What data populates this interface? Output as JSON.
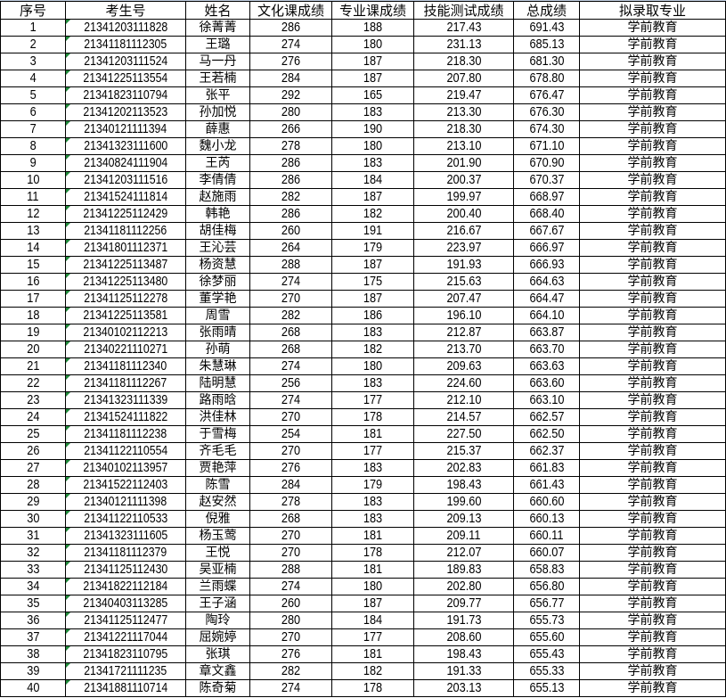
{
  "headers": [
    "序号",
    "考生号",
    "姓名",
    "文化课成绩",
    "专业课成绩",
    "技能测试成绩",
    "总成绩",
    "拟录取专业"
  ],
  "rows": [
    [
      "1",
      "21341203111828",
      "徐菁菁",
      "286",
      "188",
      "217.43",
      "691.43",
      "学前教育"
    ],
    [
      "2",
      "21341181112305",
      "王璐",
      "274",
      "180",
      "231.13",
      "685.13",
      "学前教育"
    ],
    [
      "3",
      "21341203111524",
      "马一丹",
      "276",
      "187",
      "218.30",
      "681.30",
      "学前教育"
    ],
    [
      "4",
      "21341225113554",
      "王若楠",
      "284",
      "187",
      "207.80",
      "678.80",
      "学前教育"
    ],
    [
      "5",
      "21341823110794",
      "张平",
      "292",
      "165",
      "219.47",
      "676.47",
      "学前教育"
    ],
    [
      "6",
      "21341202113523",
      "孙加悦",
      "280",
      "183",
      "213.30",
      "676.30",
      "学前教育"
    ],
    [
      "7",
      "21340121111394",
      "薛惠",
      "266",
      "190",
      "218.30",
      "674.30",
      "学前教育"
    ],
    [
      "8",
      "21341323111600",
      "魏小龙",
      "278",
      "180",
      "213.10",
      "671.10",
      "学前教育"
    ],
    [
      "9",
      "21340824111904",
      "王芮",
      "286",
      "183",
      "201.90",
      "670.90",
      "学前教育"
    ],
    [
      "10",
      "21341203111516",
      "李倩倩",
      "286",
      "184",
      "200.37",
      "670.37",
      "学前教育"
    ],
    [
      "11",
      "21341524111814",
      "赵施雨",
      "282",
      "187",
      "199.97",
      "668.97",
      "学前教育"
    ],
    [
      "12",
      "21341225112429",
      "韩艳",
      "286",
      "182",
      "200.40",
      "668.40",
      "学前教育"
    ],
    [
      "13",
      "21341181112256",
      "胡佳梅",
      "260",
      "191",
      "216.67",
      "667.67",
      "学前教育"
    ],
    [
      "14",
      "21341801112371",
      "王沁芸",
      "264",
      "179",
      "223.97",
      "666.97",
      "学前教育"
    ],
    [
      "15",
      "21341225113487",
      "杨资慧",
      "288",
      "187",
      "191.93",
      "666.93",
      "学前教育"
    ],
    [
      "16",
      "21341225113480",
      "徐梦丽",
      "274",
      "175",
      "215.63",
      "664.63",
      "学前教育"
    ],
    [
      "17",
      "21341125112278",
      "董学艳",
      "270",
      "187",
      "207.47",
      "664.47",
      "学前教育"
    ],
    [
      "18",
      "21341225113581",
      "周雪",
      "282",
      "186",
      "196.10",
      "664.10",
      "学前教育"
    ],
    [
      "19",
      "21340102112213",
      "张雨晴",
      "268",
      "183",
      "212.87",
      "663.87",
      "学前教育"
    ],
    [
      "20",
      "21340221110271",
      "孙萌",
      "268",
      "182",
      "213.70",
      "663.70",
      "学前教育"
    ],
    [
      "21",
      "21341181112340",
      "朱慧琳",
      "274",
      "180",
      "209.63",
      "663.63",
      "学前教育"
    ],
    [
      "22",
      "21341181112267",
      "陆明慧",
      "256",
      "183",
      "224.60",
      "663.60",
      "学前教育"
    ],
    [
      "23",
      "21341323111339",
      "路雨晗",
      "274",
      "177",
      "212.10",
      "663.10",
      "学前教育"
    ],
    [
      "24",
      "21341524111822",
      "洪佳林",
      "270",
      "178",
      "214.57",
      "662.57",
      "学前教育"
    ],
    [
      "25",
      "21341181112238",
      "于雪梅",
      "254",
      "181",
      "227.50",
      "662.50",
      "学前教育"
    ],
    [
      "26",
      "21341122110554",
      "齐毛毛",
      "270",
      "177",
      "215.37",
      "662.37",
      "学前教育"
    ],
    [
      "27",
      "21340102113957",
      "贾艳萍",
      "276",
      "183",
      "202.83",
      "661.83",
      "学前教育"
    ],
    [
      "28",
      "21341522112403",
      "陈雪",
      "284",
      "179",
      "198.43",
      "661.43",
      "学前教育"
    ],
    [
      "29",
      "21340121111398",
      "赵安然",
      "278",
      "183",
      "199.60",
      "660.60",
      "学前教育"
    ],
    [
      "30",
      "21341122110533",
      "倪雅",
      "268",
      "183",
      "209.13",
      "660.13",
      "学前教育"
    ],
    [
      "31",
      "21341323111605",
      "杨玉莺",
      "270",
      "181",
      "209.11",
      "660.11",
      "学前教育"
    ],
    [
      "32",
      "21341181112379",
      "王悦",
      "270",
      "178",
      "212.07",
      "660.07",
      "学前教育"
    ],
    [
      "33",
      "21341125112430",
      "吴亚楠",
      "288",
      "181",
      "189.83",
      "658.83",
      "学前教育"
    ],
    [
      "34",
      "21341822112184",
      "兰雨蝶",
      "274",
      "180",
      "202.80",
      "656.80",
      "学前教育"
    ],
    [
      "35",
      "21340403113285",
      "王子涵",
      "260",
      "187",
      "209.77",
      "656.77",
      "学前教育"
    ],
    [
      "36",
      "21341125112477",
      "陶玲",
      "280",
      "184",
      "191.73",
      "655.73",
      "学前教育"
    ],
    [
      "37",
      "21341221117044",
      "屈婉婷",
      "270",
      "177",
      "208.60",
      "655.60",
      "学前教育"
    ],
    [
      "38",
      "21341823110795",
      "张琪",
      "276",
      "181",
      "198.43",
      "655.43",
      "学前教育"
    ],
    [
      "39",
      "21341721111235",
      "章文鑫",
      "282",
      "182",
      "191.33",
      "655.33",
      "学前教育"
    ],
    [
      "40",
      "21341881110714",
      "陈奇菊",
      "274",
      "178",
      "203.13",
      "655.13",
      "学前教育"
    ]
  ]
}
